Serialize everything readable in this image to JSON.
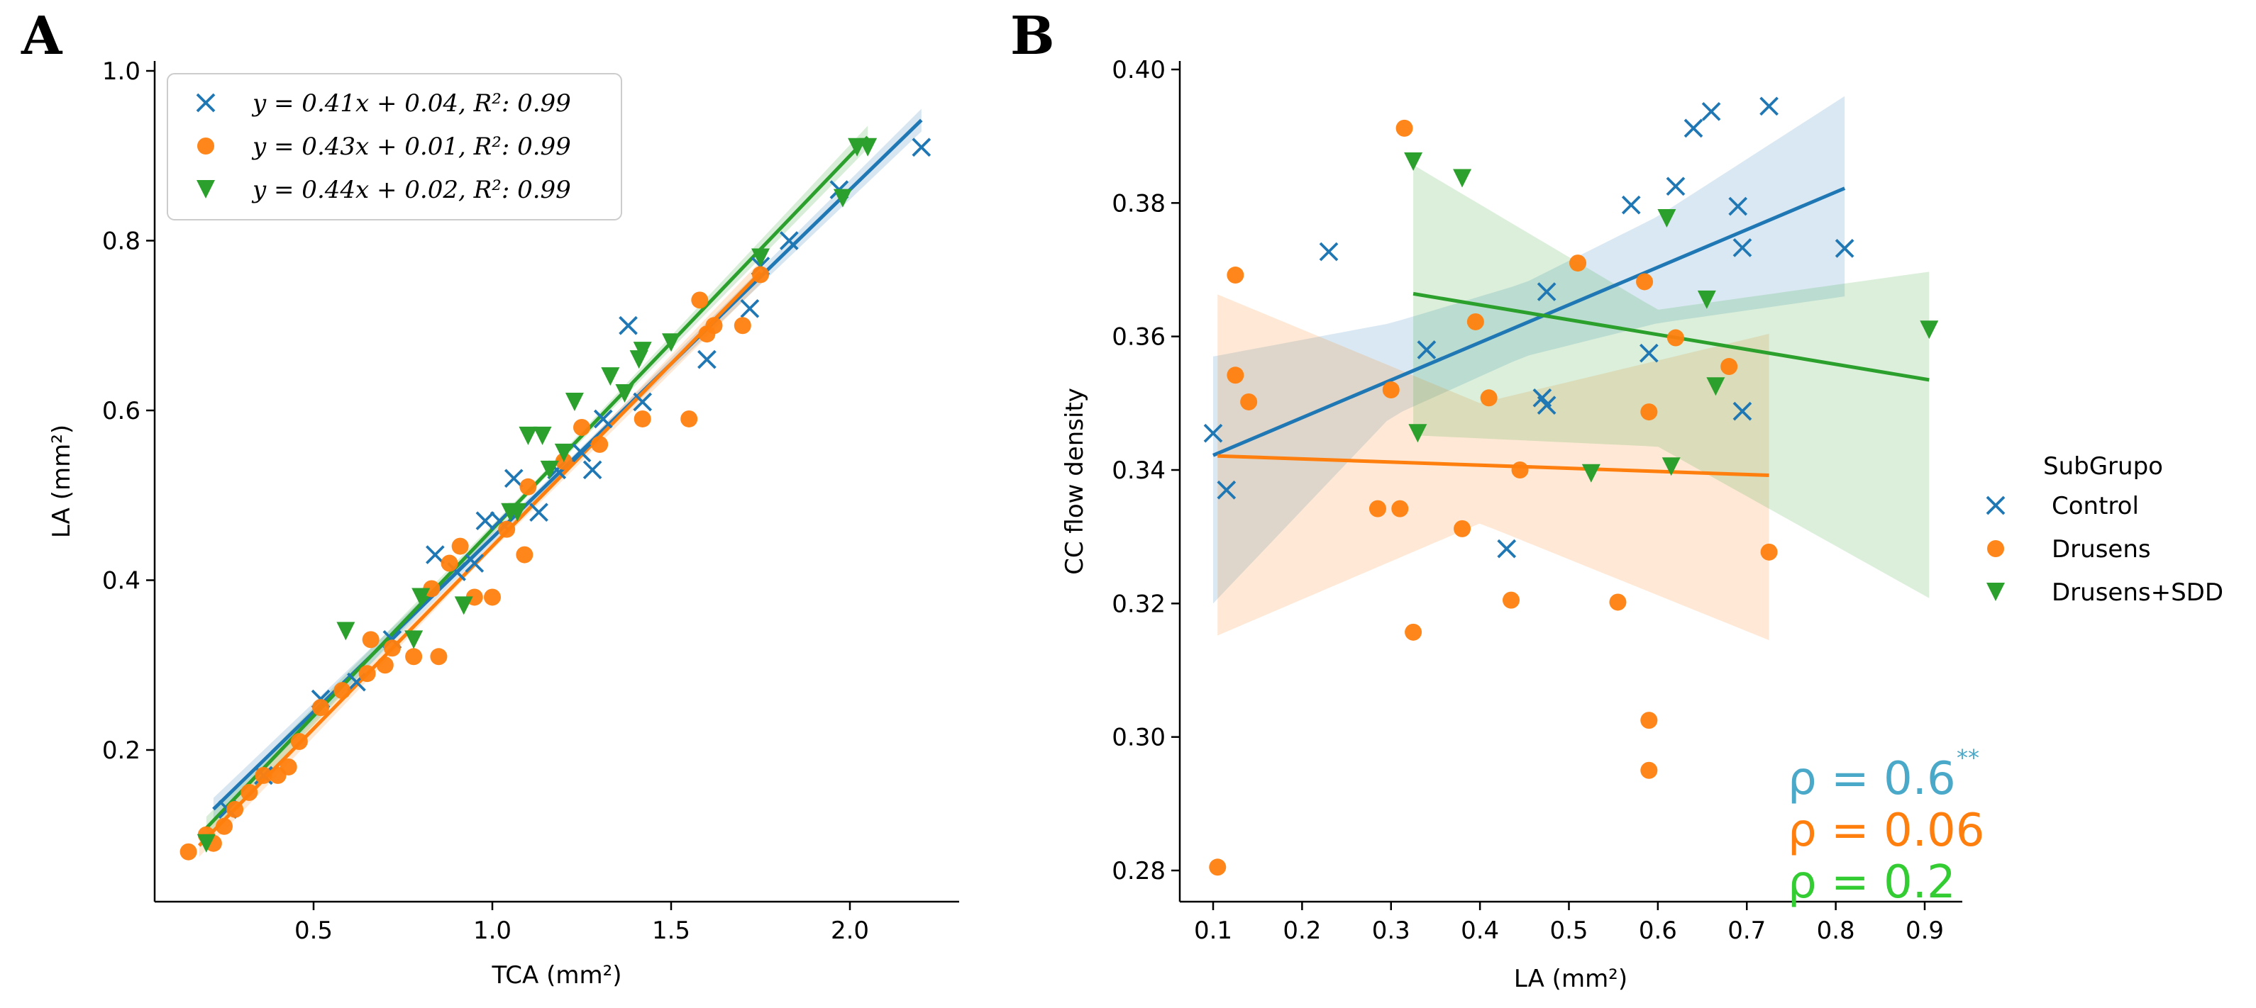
{
  "figure": {
    "panel_a_letter": "A",
    "panel_b_letter": "B"
  },
  "chart_data": [
    {
      "panel": "A",
      "type": "scatter",
      "xlabel": "TCA (mm²)",
      "ylabel": "LA (mm²)",
      "xlim": [
        0.1,
        2.3
      ],
      "ylim": [
        0.05,
        1.02
      ],
      "xticks": [
        "0.5",
        "1.0",
        "1.5",
        "2.0"
      ],
      "yticks": [
        "0.2",
        "0.4",
        "0.6",
        "0.8",
        "1.0"
      ],
      "grid": false,
      "legend_position": "top-left",
      "series": [
        {
          "name": "y = 0.41x + 0.04, R²: 0.99",
          "marker": "x",
          "color": "#1f77b4",
          "points": [
            [
              0.26,
              0.13
            ],
            [
              0.36,
              0.17
            ],
            [
              0.52,
              0.26
            ],
            [
              0.62,
              0.28
            ],
            [
              0.72,
              0.33
            ],
            [
              0.84,
              0.43
            ],
            [
              0.9,
              0.41
            ],
            [
              0.95,
              0.42
            ],
            [
              0.98,
              0.47
            ],
            [
              1.02,
              0.47
            ],
            [
              1.06,
              0.52
            ],
            [
              1.13,
              0.48
            ],
            [
              1.18,
              0.53
            ],
            [
              1.25,
              0.55
            ],
            [
              1.28,
              0.53
            ],
            [
              1.31,
              0.59
            ],
            [
              1.38,
              0.7
            ],
            [
              1.42,
              0.61
            ],
            [
              1.6,
              0.66
            ],
            [
              1.72,
              0.72
            ],
            [
              1.75,
              0.77
            ],
            [
              1.83,
              0.8
            ],
            [
              1.97,
              0.86
            ],
            [
              2.2,
              0.91
            ]
          ],
          "fit": {
            "x": [
              0.22,
              2.2
            ],
            "y": [
              0.1302,
              0.942
            ]
          }
        },
        {
          "name": "y = 0.43x + 0.01, R²: 0.99",
          "marker": "o",
          "color": "#ff7f0e",
          "points": [
            [
              0.15,
              0.08
            ],
            [
              0.2,
              0.1
            ],
            [
              0.22,
              0.09
            ],
            [
              0.25,
              0.11
            ],
            [
              0.28,
              0.13
            ],
            [
              0.32,
              0.15
            ],
            [
              0.36,
              0.17
            ],
            [
              0.4,
              0.17
            ],
            [
              0.43,
              0.18
            ],
            [
              0.46,
              0.21
            ],
            [
              0.52,
              0.25
            ],
            [
              0.58,
              0.27
            ],
            [
              0.65,
              0.29
            ],
            [
              0.66,
              0.33
            ],
            [
              0.7,
              0.3
            ],
            [
              0.72,
              0.32
            ],
            [
              0.78,
              0.31
            ],
            [
              0.83,
              0.39
            ],
            [
              0.85,
              0.31
            ],
            [
              0.88,
              0.42
            ],
            [
              0.91,
              0.44
            ],
            [
              0.95,
              0.38
            ],
            [
              1.0,
              0.38
            ],
            [
              1.04,
              0.46
            ],
            [
              1.09,
              0.43
            ],
            [
              1.1,
              0.51
            ],
            [
              1.2,
              0.54
            ],
            [
              1.25,
              0.58
            ],
            [
              1.3,
              0.56
            ],
            [
              1.42,
              0.59
            ],
            [
              1.55,
              0.59
            ],
            [
              1.58,
              0.73
            ],
            [
              1.6,
              0.69
            ],
            [
              1.62,
              0.7
            ],
            [
              1.7,
              0.7
            ],
            [
              1.75,
              0.76
            ]
          ],
          "fit": {
            "x": [
              0.18,
              1.75
            ],
            "y": [
              0.0874,
              0.7625
            ]
          }
        },
        {
          "name": "y = 0.44x + 0.02, R²: 0.99",
          "marker": "v",
          "color": "#2ca02c",
          "points": [
            [
              0.2,
              0.09
            ],
            [
              0.59,
              0.34
            ],
            [
              0.78,
              0.33
            ],
            [
              0.8,
              0.38
            ],
            [
              0.92,
              0.37
            ],
            [
              1.05,
              0.48
            ],
            [
              1.07,
              0.48
            ],
            [
              1.1,
              0.57
            ],
            [
              1.14,
              0.57
            ],
            [
              1.16,
              0.53
            ],
            [
              1.2,
              0.55
            ],
            [
              1.23,
              0.61
            ],
            [
              1.33,
              0.64
            ],
            [
              1.37,
              0.62
            ],
            [
              1.41,
              0.66
            ],
            [
              1.42,
              0.67
            ],
            [
              1.5,
              0.68
            ],
            [
              1.75,
              0.78
            ],
            [
              1.98,
              0.85
            ],
            [
              2.02,
              0.91
            ],
            [
              2.05,
              0.91
            ]
          ],
          "fit": {
            "x": [
              0.2,
              2.05
            ],
            "y": [
              0.108,
              0.922
            ]
          }
        }
      ]
    },
    {
      "panel": "B",
      "type": "scatter",
      "xlabel": "LA (mm²)",
      "ylabel": "CC flow density",
      "xlim": [
        0.06,
        0.95
      ],
      "ylim": [
        0.274,
        0.401
      ],
      "xticks": [
        "0.1",
        "0.2",
        "0.3",
        "0.4",
        "0.5",
        "0.6",
        "0.7",
        "0.8",
        "0.9"
      ],
      "yticks": [
        "0.28",
        "0.30",
        "0.32",
        "0.34",
        "0.36",
        "0.38",
        "0.40"
      ],
      "grid": false,
      "legend_title": "SubGrupo",
      "legend_position": "right",
      "annotations": [
        "ρ = 0.6",
        "**",
        "ρ = 0.06",
        "ρ = 0.2"
      ],
      "series": [
        {
          "name": "Control",
          "marker": "x",
          "color": "#1f77b4",
          "points": [
            [
              0.1,
              0.3455
            ],
            [
              0.115,
              0.337
            ],
            [
              0.23,
              0.3727
            ],
            [
              0.34,
              0.358
            ],
            [
              0.43,
              0.3282
            ],
            [
              0.47,
              0.3508
            ],
            [
              0.475,
              0.3497
            ],
            [
              0.475,
              0.3667
            ],
            [
              0.57,
              0.3797
            ],
            [
              0.59,
              0.3575
            ],
            [
              0.62,
              0.3825
            ],
            [
              0.64,
              0.3912
            ],
            [
              0.66,
              0.3937
            ],
            [
              0.69,
              0.3795
            ],
            [
              0.695,
              0.3733
            ],
            [
              0.695,
              0.3488
            ],
            [
              0.725,
              0.3945
            ],
            [
              0.81,
              0.3732
            ]
          ],
          "fit": {
            "x": [
              0.1,
              0.81
            ],
            "y": [
              0.3422,
              0.3822
            ]
          },
          "ci_band": {
            "x": [
              0.1,
              0.3,
              0.45,
              0.6,
              0.81
            ],
            "upper": [
              0.357,
              0.362,
              0.368,
              0.378,
              0.396
            ],
            "lower": [
              0.32,
              0.348,
              0.357,
              0.362,
              0.366
            ]
          }
        },
        {
          "name": "Drusens",
          "marker": "o",
          "color": "#ff7f0e",
          "points": [
            [
              0.105,
              0.2805
            ],
            [
              0.125,
              0.3692
            ],
            [
              0.125,
              0.3542
            ],
            [
              0.14,
              0.3502
            ],
            [
              0.285,
              0.3342
            ],
            [
              0.3,
              0.352
            ],
            [
              0.31,
              0.3342
            ],
            [
              0.315,
              0.3912
            ],
            [
              0.325,
              0.3157
            ],
            [
              0.38,
              0.3312
            ],
            [
              0.395,
              0.3622
            ],
            [
              0.41,
              0.3508
            ],
            [
              0.435,
              0.3205
            ],
            [
              0.445,
              0.34
            ],
            [
              0.51,
              0.371
            ],
            [
              0.555,
              0.3202
            ],
            [
              0.585,
              0.3682
            ],
            [
              0.59,
              0.3487
            ],
            [
              0.59,
              0.3025
            ],
            [
              0.59,
              0.295
            ],
            [
              0.62,
              0.3598
            ],
            [
              0.68,
              0.3555
            ],
            [
              0.725,
              0.3277
            ]
          ],
          "fit": {
            "x": [
              0.105,
              0.725
            ],
            "y": [
              0.3421,
              0.3392
            ]
          },
          "ci_band": {
            "x": [
              0.105,
              0.4,
              0.725
            ],
            "upper": [
              0.3663,
              0.35,
              0.3604
            ],
            "lower": [
              0.3152,
              0.332,
              0.3145
            ]
          }
        },
        {
          "name": "Drusens+SDD",
          "marker": "v",
          "color": "#2ca02c",
          "points": [
            [
              0.325,
              0.3862
            ],
            [
              0.33,
              0.3455
            ],
            [
              0.38,
              0.3837
            ],
            [
              0.525,
              0.3395
            ],
            [
              0.61,
              0.3777
            ],
            [
              0.615,
              0.3405
            ],
            [
              0.655,
              0.3655
            ],
            [
              0.665,
              0.3525
            ],
            [
              0.905,
              0.361
            ]
          ],
          "fit": {
            "x": [
              0.325,
              0.905
            ],
            "y": [
              0.3664,
              0.3535
            ]
          },
          "ci_band": {
            "x": [
              0.325,
              0.6,
              0.905
            ],
            "upper": [
              0.3857,
              0.364,
              0.3697
            ],
            "lower": [
              0.3452,
              0.3435,
              0.3208
            ]
          }
        }
      ]
    }
  ]
}
